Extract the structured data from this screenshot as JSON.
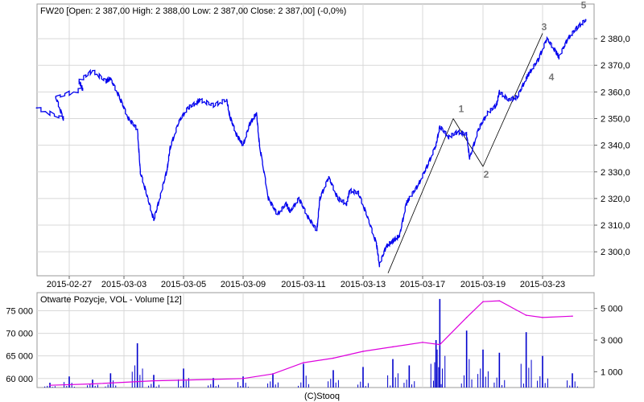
{
  "charts": {
    "price_panel": {
      "header": "FW20 [Open: 2 387,00  High: 2 388,00  Low: 2 387,00  Close: 2 387,00] (-0,0%)",
      "y_tick_labels": [
        "2 300,0",
        "2 310,0",
        "2 320,0",
        "2 330,0",
        "2 340,0",
        "2 350,0",
        "2 360,0",
        "2 370,0",
        "2 380,0"
      ],
      "x_tick_labels": [
        "2015-02-27",
        "2015-03-03",
        "2015-03-05",
        "2015-03-09",
        "2015-03-11",
        "2015-03-13",
        "2015-03-17",
        "2015-03-19",
        "2015-03-23"
      ],
      "wave_labels": [
        "1",
        "2",
        "3",
        "4",
        "5"
      ]
    },
    "volume_panel": {
      "header": "Otwarte Pozycje, VOL - Volume [12]",
      "left_tick_labels": [
        "60 000",
        "65 000",
        "70 000",
        "75 000"
      ],
      "right_tick_labels": [
        "1 000",
        "3 000",
        "5 000"
      ]
    },
    "footer": "(C)Stooq"
  },
  "colors": {
    "price_line": "#0000ee",
    "volume_bars": "#0000cc",
    "open_interest_line": "#dd00dd",
    "wave_lines": "#000000",
    "wave_labels": "#777777",
    "grid": "#d8d8d8",
    "background": "#ffffff"
  },
  "chart_data": [
    {
      "type": "line",
      "title": "FW20 [Open: 2 387,00  High: 2 388,00  Low: 2 387,00  Close: 2 387,00] (-0,0%)",
      "x_label": "",
      "y_label": "",
      "y_axis_side": "right",
      "ylim": [
        2291,
        2393
      ],
      "grid": true,
      "series": [
        {
          "points": [
            [
              "2015-02-26",
              2354
            ],
            [
              "2015-02-26",
              2350
            ],
            [
              "2015-02-27",
              2358
            ],
            [
              "2015-02-27",
              2361
            ],
            [
              "2015-03-02",
              2364
            ],
            [
              "2015-03-02",
              2368
            ],
            [
              "2015-03-02",
              2364
            ],
            [
              "2015-03-03",
              2365
            ],
            [
              "2015-03-03",
              2358
            ],
            [
              "2015-03-03",
              2350
            ],
            [
              "2015-03-03",
              2346
            ],
            [
              "2015-03-04",
              2330
            ],
            [
              "2015-03-04",
              2321
            ],
            [
              "2015-03-04",
              2312
            ],
            [
              "2015-03-04",
              2321
            ],
            [
              "2015-03-04",
              2331
            ],
            [
              "2015-03-05",
              2339
            ],
            [
              "2015-03-05",
              2349
            ],
            [
              "2015-03-05",
              2354
            ],
            [
              "2015-03-05",
              2356
            ],
            [
              "2015-03-06",
              2357
            ],
            [
              "2015-03-06",
              2355
            ],
            [
              "2015-03-06",
              2357
            ],
            [
              "2015-03-09",
              2351
            ],
            [
              "2015-03-09",
              2344
            ],
            [
              "2015-03-09",
              2340
            ],
            [
              "2015-03-09",
              2348
            ],
            [
              "2015-03-09",
              2352
            ],
            [
              "2015-03-10",
              2340
            ],
            [
              "2015-03-10",
              2320
            ],
            [
              "2015-03-10",
              2314
            ],
            [
              "2015-03-10",
              2318
            ],
            [
              "2015-03-11",
              2315
            ],
            [
              "2015-03-11",
              2320
            ],
            [
              "2015-03-11",
              2313
            ],
            [
              "2015-03-11",
              2308
            ],
            [
              "2015-03-12",
              2320
            ],
            [
              "2015-03-12",
              2328
            ],
            [
              "2015-03-12",
              2320
            ],
            [
              "2015-03-12",
              2318
            ],
            [
              "2015-03-13",
              2323
            ],
            [
              "2015-03-13",
              2322
            ],
            [
              "2015-03-13",
              2313
            ],
            [
              "2015-03-13",
              2303
            ],
            [
              "2015-03-16",
              2295
            ],
            [
              "2015-03-16",
              2302
            ],
            [
              "2015-03-16",
              2304
            ],
            [
              "2015-03-16",
              2306
            ],
            [
              "2015-03-16",
              2318
            ],
            [
              "2015-03-17",
              2320
            ],
            [
              "2015-03-17",
              2325
            ],
            [
              "2015-03-17",
              2332
            ],
            [
              "2015-03-17",
              2340
            ],
            [
              "2015-03-18",
              2347
            ],
            [
              "2015-03-18",
              2343
            ],
            [
              "2015-03-18",
              2345
            ],
            [
              "2015-03-18",
              2344
            ],
            [
              "2015-03-19",
              2335
            ],
            [
              "2015-03-19",
              2346
            ],
            [
              "2015-03-19",
              2352
            ],
            [
              "2015-03-19",
              2355
            ],
            [
              "2015-03-20",
              2360
            ],
            [
              "2015-03-20",
              2357
            ],
            [
              "2015-03-20",
              2358
            ],
            [
              "2015-03-20",
              2365
            ],
            [
              "2015-03-23",
              2367
            ],
            [
              "2015-03-23",
              2372
            ],
            [
              "2015-03-23",
              2380
            ],
            [
              "2015-03-23",
              2375
            ],
            [
              "2015-03-24",
              2373
            ],
            [
              "2015-03-24",
              2380
            ],
            [
              "2015-03-24",
              2384
            ],
            [
              "2015-03-24",
              2387
            ]
          ]
        }
      ],
      "wave_annotations": [
        {
          "label": "1",
          "x": "2015-03-18",
          "y": 2350
        },
        {
          "label": "2",
          "x": "2015-03-19",
          "y": 2332
        },
        {
          "label": "3",
          "x": "2015-03-23",
          "y": 2382
        },
        {
          "label": "4",
          "x": "2015-03-24",
          "y": 2368
        },
        {
          "label": "5",
          "x": "2015-03-24",
          "y": 2389
        }
      ],
      "wave_lines": [
        {
          "from": [
            "2015-03-16",
            2292
          ],
          "to": [
            "2015-03-18",
            2350
          ]
        },
        {
          "from": [
            "2015-03-18",
            2350
          ],
          "to": [
            "2015-03-19",
            2332
          ]
        },
        {
          "from": [
            "2015-03-19",
            2332
          ],
          "to": [
            "2015-03-23",
            2382
          ]
        }
      ]
    },
    {
      "type": "bar",
      "title": "Otwarte Pozycje, VOL - Volume [12]",
      "x_label": "",
      "y_label": "",
      "left_axis": {
        "label": "",
        "range": [
          58000,
          79000
        ],
        "ticks": [
          60000,
          65000,
          70000,
          75000
        ]
      },
      "right_axis": {
        "label": "",
        "range": [
          0,
          6000
        ],
        "ticks": [
          1000,
          3000,
          5000
        ]
      },
      "grid": true,
      "series": [
        {
          "type": "line",
          "axis": "left",
          "points": [
            [
              "2015-02-26",
              58500
            ],
            [
              "2015-03-02",
              58800
            ],
            [
              "2015-03-04",
              59500
            ],
            [
              "2015-03-06",
              59800
            ],
            [
              "2015-03-09",
              60000
            ],
            [
              "2015-03-10",
              61000
            ],
            [
              "2015-03-11",
              63500
            ],
            [
              "2015-03-12",
              64500
            ],
            [
              "2015-03-13",
              66000
            ],
            [
              "2015-03-16",
              67000
            ],
            [
              "2015-03-17",
              68000
            ],
            [
              "2015-03-18",
              67500
            ],
            [
              "2015-03-18",
              73500
            ],
            [
              "2015-03-19",
              77000
            ],
            [
              "2015-03-20",
              77200
            ],
            [
              "2015-03-20",
              74000
            ],
            [
              "2015-03-23",
              73500
            ],
            [
              "2015-03-24",
              73800
            ]
          ]
        },
        {
          "type": "bar",
          "axis": "right",
          "points": [
            [
              "2015-02-26",
              300
            ],
            [
              "2015-02-27",
              700
            ],
            [
              "2015-03-02",
              500
            ],
            [
              "2015-03-03",
              900
            ],
            [
              "2015-03-03",
              2800
            ],
            [
              "2015-03-04",
              800
            ],
            [
              "2015-03-05",
              1200
            ],
            [
              "2015-03-06",
              600
            ],
            [
              "2015-03-09",
              700
            ],
            [
              "2015-03-10",
              900
            ],
            [
              "2015-03-11",
              1500
            ],
            [
              "2015-03-12",
              1100
            ],
            [
              "2015-03-13",
              1300
            ],
            [
              "2015-03-16",
              1800
            ],
            [
              "2015-03-17",
              1400
            ],
            [
              "2015-03-17",
              3000
            ],
            [
              "2015-03-18",
              5600
            ],
            [
              "2015-03-18",
              3600
            ],
            [
              "2015-03-19",
              2400
            ],
            [
              "2015-03-20",
              2200
            ],
            [
              "2015-03-20",
              3500
            ],
            [
              "2015-03-23",
              2000
            ],
            [
              "2015-03-24",
              900
            ]
          ]
        }
      ]
    }
  ]
}
